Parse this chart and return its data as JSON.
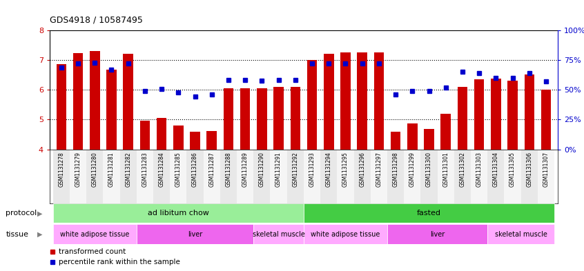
{
  "title": "GDS4918 / 10587495",
  "samples": [
    "GSM1131278",
    "GSM1131279",
    "GSM1131280",
    "GSM1131281",
    "GSM1131282",
    "GSM1131283",
    "GSM1131284",
    "GSM1131285",
    "GSM1131286",
    "GSM1131287",
    "GSM1131288",
    "GSM1131289",
    "GSM1131290",
    "GSM1131291",
    "GSM1131292",
    "GSM1131293",
    "GSM1131294",
    "GSM1131295",
    "GSM1131296",
    "GSM1131297",
    "GSM1131298",
    "GSM1131299",
    "GSM1131300",
    "GSM1131301",
    "GSM1131302",
    "GSM1131303",
    "GSM1131304",
    "GSM1131305",
    "GSM1131306",
    "GSM1131307"
  ],
  "bar_values": [
    6.85,
    7.22,
    7.3,
    6.68,
    7.2,
    4.95,
    5.05,
    4.8,
    4.6,
    4.62,
    6.05,
    6.05,
    6.05,
    6.1,
    6.1,
    7.0,
    7.2,
    7.25,
    7.25,
    7.25,
    4.6,
    4.88,
    4.68,
    5.2,
    6.1,
    6.35,
    6.38,
    6.3,
    6.5,
    6.0
  ],
  "blue_values": [
    6.75,
    6.87,
    6.9,
    6.68,
    6.87,
    5.95,
    6.03,
    5.92,
    5.78,
    5.83,
    6.33,
    6.33,
    6.3,
    6.33,
    6.33,
    6.87,
    6.87,
    6.87,
    6.87,
    6.87,
    5.83,
    5.95,
    5.95,
    6.08,
    6.6,
    6.55,
    6.4,
    6.4,
    6.55,
    6.27
  ],
  "ylim": [
    4,
    8
  ],
  "yticks": [
    4,
    5,
    6,
    7,
    8
  ],
  "right_yticks": [
    0,
    25,
    50,
    75,
    100
  ],
  "right_ytick_labels": [
    "0%",
    "25%",
    "50%",
    "75%",
    "100%"
  ],
  "bar_color": "#cc0000",
  "blue_color": "#0000cc",
  "protocol_groups": [
    {
      "label": "ad libitum chow",
      "start": 0,
      "end": 14,
      "color": "#99ee99"
    },
    {
      "label": "fasted",
      "start": 15,
      "end": 29,
      "color": "#44cc44"
    }
  ],
  "tissue_groups": [
    {
      "label": "white adipose tissue",
      "start": 0,
      "end": 4,
      "color": "#ffaaff"
    },
    {
      "label": "liver",
      "start": 5,
      "end": 11,
      "color": "#ee66ee"
    },
    {
      "label": "skeletal muscle",
      "start": 12,
      "end": 14,
      "color": "#ffaaff"
    },
    {
      "label": "white adipose tissue",
      "start": 15,
      "end": 19,
      "color": "#ffaaff"
    },
    {
      "label": "liver",
      "start": 20,
      "end": 25,
      "color": "#ee66ee"
    },
    {
      "label": "skeletal muscle",
      "start": 26,
      "end": 29,
      "color": "#ffaaff"
    }
  ],
  "protocol_label": "protocol",
  "tissue_label": "tissue",
  "legend_items": [
    {
      "label": "transformed count",
      "color": "#cc0000"
    },
    {
      "label": "percentile rank within the sample",
      "color": "#0000cc"
    }
  ]
}
